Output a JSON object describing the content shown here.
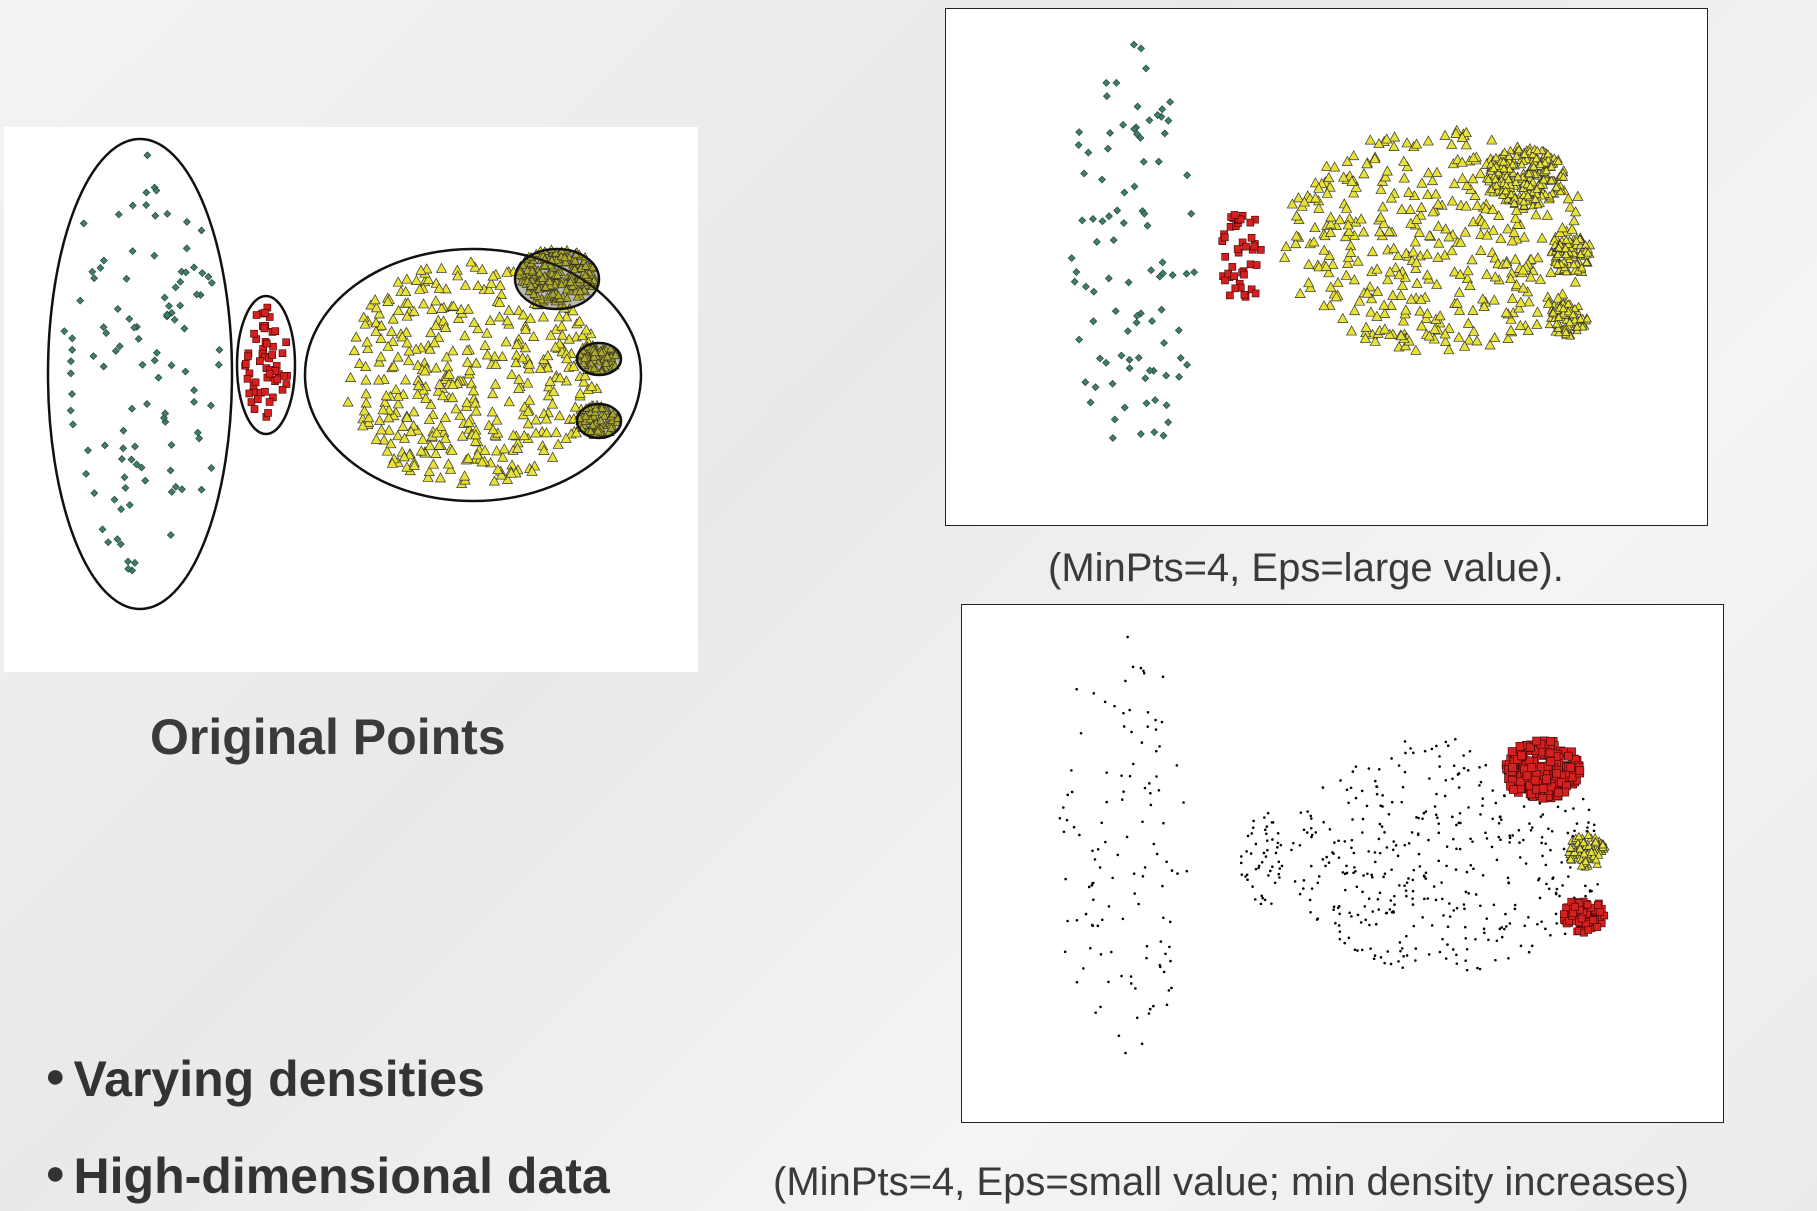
{
  "figures": {
    "original": {
      "caption": "Original Points"
    },
    "large_eps": {
      "caption": "(MinPts=4, Eps=large value)."
    },
    "small_eps": {
      "caption": "(MinPts=4, Eps=small value; min density increases)"
    }
  },
  "bullets": [
    {
      "text": "Varying densities"
    },
    {
      "text": "High-dimensional data"
    }
  ],
  "colors": {
    "teal": "#3f7f6a",
    "red": "#d62020",
    "yellow": "#e8e234",
    "noise_blue": "#1a1a8c",
    "outline": "#111111"
  },
  "icons": {
    "bullet": "bullet-dot-icon"
  }
}
